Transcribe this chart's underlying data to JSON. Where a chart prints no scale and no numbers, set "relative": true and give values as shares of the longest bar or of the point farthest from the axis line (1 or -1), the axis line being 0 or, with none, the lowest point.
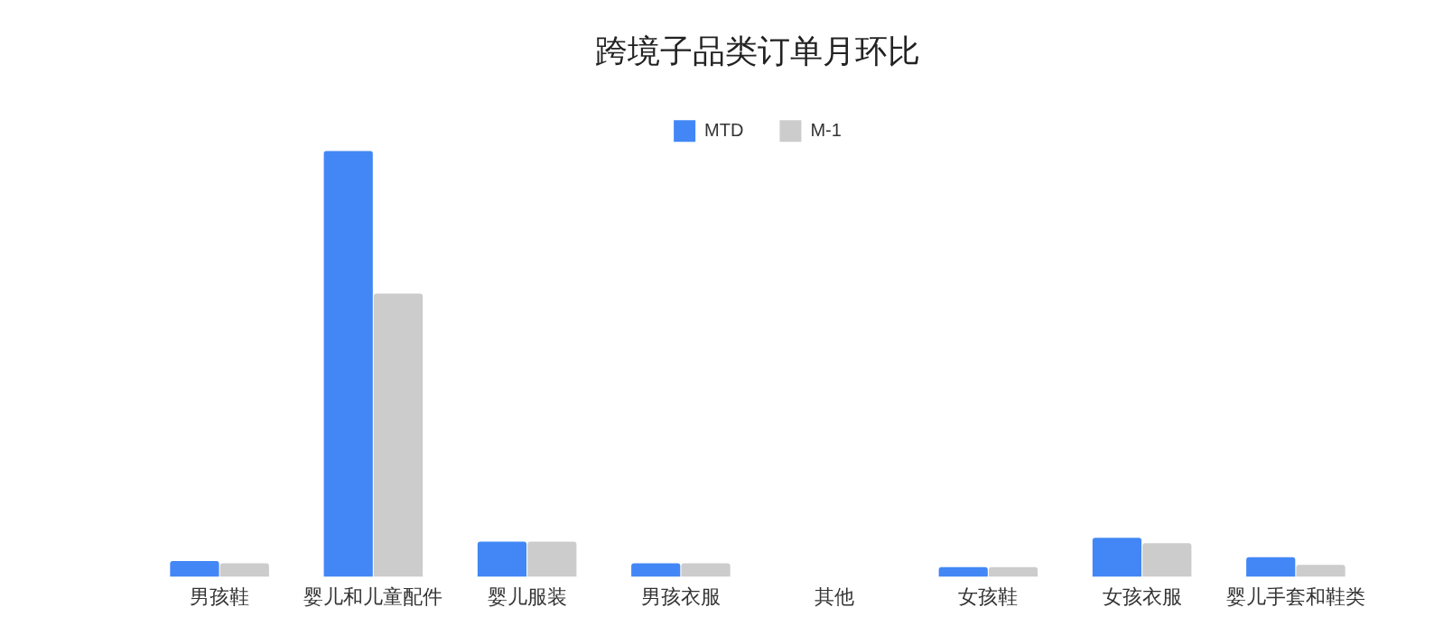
{
  "chart_data": {
    "type": "bar",
    "title": "跨境子品类订单月环比",
    "relative": true,
    "legend": "top",
    "grid": false,
    "categories": [
      "男孩鞋",
      "婴儿和儿童配件",
      "婴儿服装",
      "男孩衣服",
      "其他",
      "女孩鞋",
      "女孩衣服",
      "婴儿手套和鞋类"
    ],
    "series": [
      {
        "name": "MTD",
        "color": "#4287f5",
        "values": [
          0.037,
          1,
          0.083,
          0.032,
          0,
          0.023,
          0.092,
          0.046
        ]
      },
      {
        "name": "M-1",
        "color": "#cccccc",
        "values": [
          0.032,
          0.665,
          0.083,
          0.032,
          0,
          0.023,
          0.079,
          0.028
        ]
      }
    ]
  }
}
